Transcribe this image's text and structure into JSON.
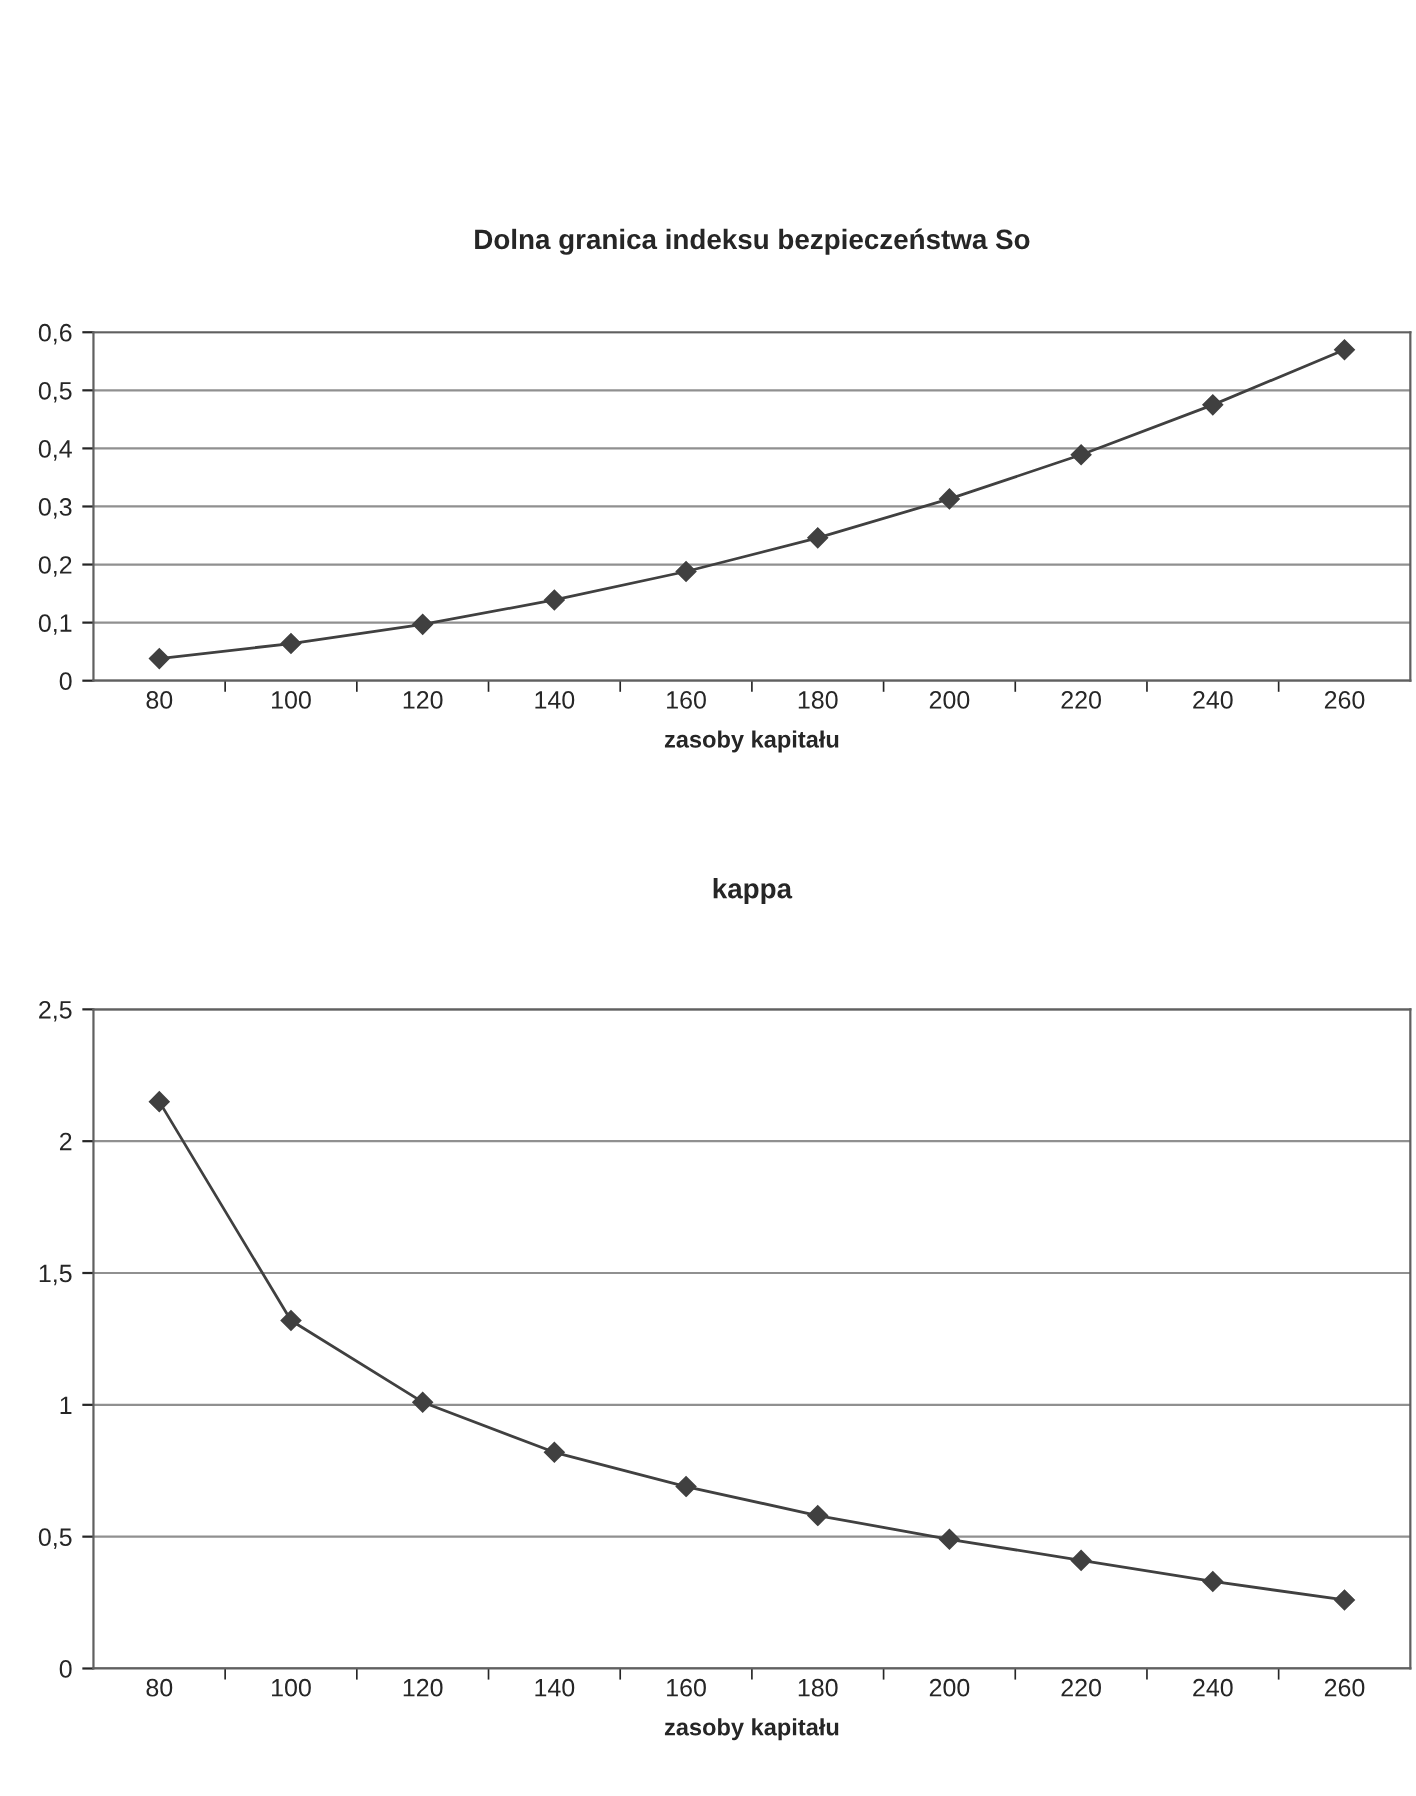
{
  "chart_data": [
    {
      "type": "line",
      "title": "Dolna granica indeksu bezpieczeństwa So",
      "xlabel": "zasoby kapitału",
      "categories": [
        "80",
        "100",
        "120",
        "140",
        "160",
        "180",
        "200",
        "220",
        "240",
        "260"
      ],
      "series": [
        {
          "color": "#404040",
          "values": [
            0.038,
            0.064,
            0.097,
            0.139,
            0.188,
            0.246,
            0.313,
            0.389,
            0.475,
            0.57
          ]
        }
      ],
      "ylim": [
        0,
        0.6
      ],
      "yticks": [
        0,
        {
          "value": 0.1,
          "label": "0,1"
        },
        {
          "value": 0.2,
          "label": "0,2"
        },
        {
          "value": 0.3,
          "label": "0,3"
        },
        {
          "value": 0.4,
          "label": "0,4"
        },
        {
          "value": 0.5,
          "label": "0,5"
        },
        {
          "value": 0.6,
          "label": "0,6"
        }
      ],
      "grid": "y",
      "marker": "diamond",
      "line_style": "solid"
    },
    {
      "type": "line",
      "title": "kappa",
      "xlabel": "zasoby kapitału",
      "categories": [
        "80",
        "100",
        "120",
        "140",
        "160",
        "180",
        "200",
        "220",
        "240",
        "260"
      ],
      "series": [
        {
          "color": "#404040",
          "values": [
            2.15,
            1.32,
            1.01,
            0.82,
            0.69,
            0.58,
            0.49,
            0.41,
            0.33,
            0.26
          ]
        }
      ],
      "ylim": [
        0,
        2.5
      ],
      "yticks": [
        0,
        {
          "value": 0.5,
          "label": "0,5"
        },
        1,
        {
          "value": 1.5,
          "label": "1,5"
        },
        2,
        {
          "value": 2.5,
          "label": "2,5"
        }
      ],
      "grid": "y",
      "marker": "diamond",
      "line_style": "solid"
    }
  ]
}
